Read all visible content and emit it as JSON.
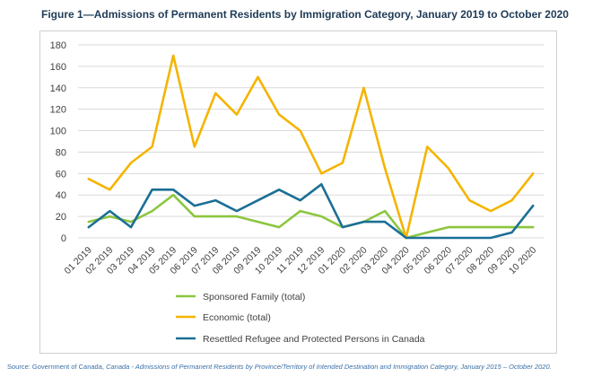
{
  "title": "Figure 1—Admissions of Permanent Residents by Immigration Category, January 2019 to October 2020",
  "source": {
    "lead": "Source: Government of Canada, ",
    "italic": "Canada - Admissions of Permanent Residents by Province/Territory of Intended Destination and Immigration Category, January 2015 – October 2020."
  },
  "chart_data": {
    "type": "line",
    "title": "Figure 1—Admissions of Permanent Residents by Immigration Category, January 2019 to October 2020",
    "xlabel": "",
    "ylabel": "",
    "ylim": [
      0,
      180
    ],
    "yticks": [
      0,
      20,
      40,
      60,
      80,
      100,
      120,
      140,
      160,
      180
    ],
    "grid": true,
    "legend_position": "bottom",
    "categories": [
      "01 2019",
      "02 2019",
      "03 2019",
      "04 2019",
      "05 2019",
      "06 2019",
      "07 2019",
      "08 2019",
      "09 2019",
      "10 2019",
      "11 2019",
      "12 2019",
      "01 2020",
      "02 2020",
      "03 2020",
      "04 2020",
      "05 2020",
      "06 2020",
      "07 2020",
      "08 2020",
      "09 2020",
      "10 2020"
    ],
    "series": [
      {
        "name": "Sponsored Family (total)",
        "color": "#8cc63f",
        "values": [
          15,
          20,
          15,
          25,
          40,
          20,
          20,
          20,
          15,
          10,
          25,
          20,
          10,
          15,
          25,
          0,
          5,
          10,
          10,
          10,
          10,
          10
        ]
      },
      {
        "name": "Economic (total)",
        "color": "#f5b400",
        "values": [
          55,
          45,
          70,
          85,
          170,
          85,
          135,
          115,
          150,
          115,
          100,
          60,
          70,
          140,
          65,
          0,
          85,
          65,
          35,
          25,
          35,
          60
        ]
      },
      {
        "name": "Resettled Refugee and Protected Persons in Canada",
        "color": "#1b6f95",
        "values": [
          10,
          25,
          10,
          45,
          45,
          30,
          35,
          25,
          35,
          45,
          35,
          50,
          10,
          15,
          15,
          0,
          0,
          0,
          0,
          0,
          5,
          30
        ]
      }
    ]
  }
}
